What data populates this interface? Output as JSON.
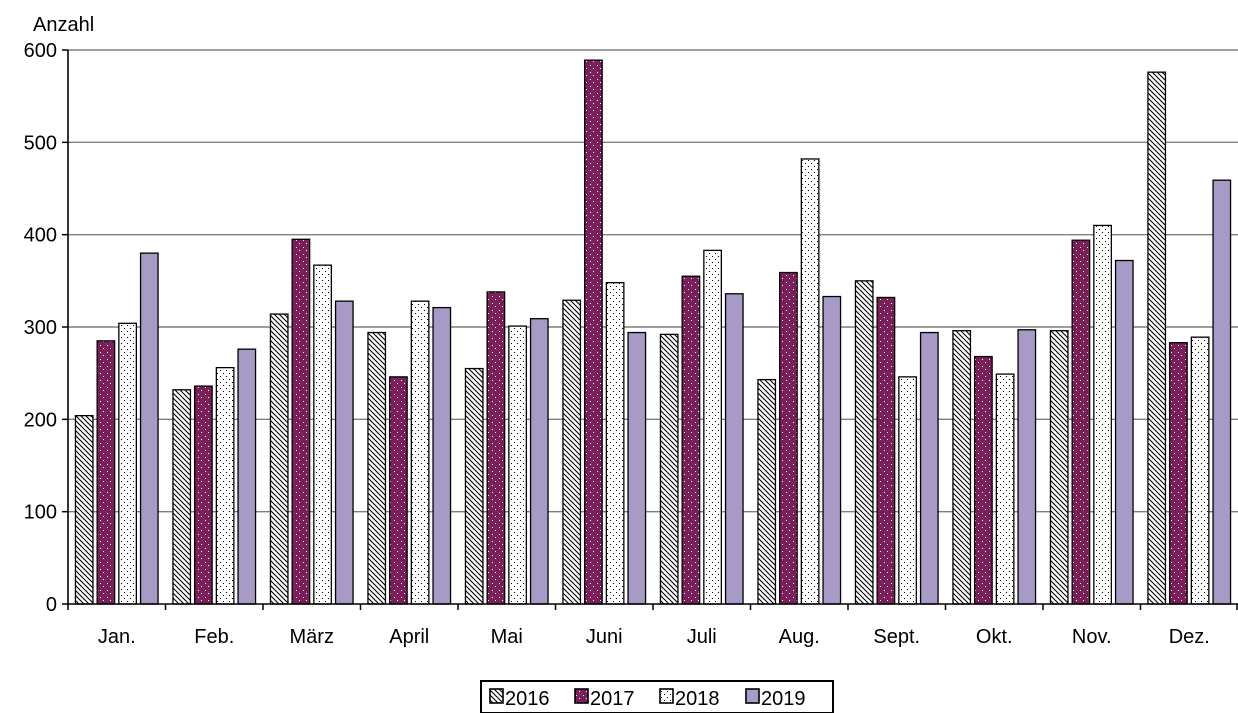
{
  "chart_data": {
    "type": "bar",
    "ylabel": "Anzahl",
    "ylim": [
      0,
      600
    ],
    "yticks": [
      0,
      100,
      200,
      300,
      400,
      500,
      600
    ],
    "grid": true,
    "legend_position": "bottom-center",
    "categories": [
      "Jan.",
      "Feb.",
      "März",
      "April",
      "Mai",
      "Juni",
      "Juli",
      "Aug.",
      "Sept.",
      "Okt.",
      "Nov.",
      "Dez."
    ],
    "series": [
      {
        "name": "2016",
        "pattern": "diagonal-hatch",
        "color": "#ffffff",
        "values": [
          204,
          232,
          314,
          294,
          255,
          329,
          292,
          243,
          350,
          296,
          296,
          576
        ]
      },
      {
        "name": "2017",
        "pattern": "solid-dotted",
        "color": "#7b1f5a",
        "values": [
          285,
          236,
          395,
          246,
          338,
          589,
          355,
          359,
          332,
          268,
          394,
          283
        ]
      },
      {
        "name": "2018",
        "pattern": "dotted",
        "color": "#ffffff",
        "values": [
          304,
          256,
          367,
          328,
          301,
          348,
          383,
          482,
          246,
          249,
          410,
          289
        ]
      },
      {
        "name": "2019",
        "pattern": "solid",
        "color": "#a79ac6",
        "values": [
          380,
          276,
          328,
          321,
          309,
          294,
          336,
          333,
          294,
          297,
          372,
          459
        ]
      }
    ]
  }
}
